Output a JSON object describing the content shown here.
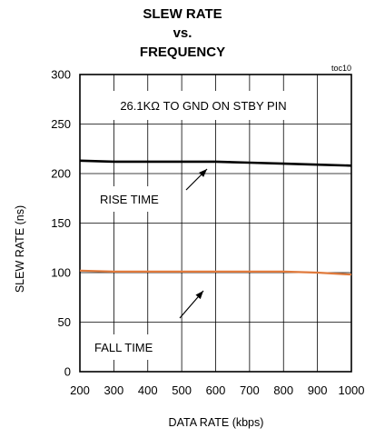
{
  "chart_data": {
    "type": "line",
    "title_lines": [
      "SLEW RATE",
      "vs.",
      "FREQUENCY"
    ],
    "tag": "toc10",
    "xlabel": "DATA RATE (kbps)",
    "ylabel": "SLEW RATE (ns)",
    "xlim": [
      200,
      1000
    ],
    "ylim": [
      0,
      300
    ],
    "xticks": [
      200,
      300,
      400,
      500,
      600,
      700,
      800,
      900,
      1000
    ],
    "yticks": [
      0,
      50,
      100,
      150,
      200,
      250,
      300
    ],
    "grid": true,
    "series": [
      {
        "name": "RISE TIME",
        "color": "#000000",
        "x": [
          200,
          300,
          400,
          500,
          600,
          700,
          800,
          900,
          1000
        ],
        "y": [
          213,
          212,
          212,
          212,
          212,
          211,
          210,
          209,
          208
        ]
      },
      {
        "name": "FALL TIME",
        "color": "#e07a3c",
        "x": [
          200,
          300,
          400,
          500,
          600,
          700,
          800,
          900,
          1000
        ],
        "y": [
          102,
          101,
          101,
          101,
          101,
          101,
          101,
          100,
          98
        ]
      }
    ],
    "annotations": [
      {
        "text": "26.1KΩ TO GND ON STBY PIN"
      },
      {
        "text": "RISE TIME"
      },
      {
        "text": "FALL TIME"
      }
    ]
  }
}
